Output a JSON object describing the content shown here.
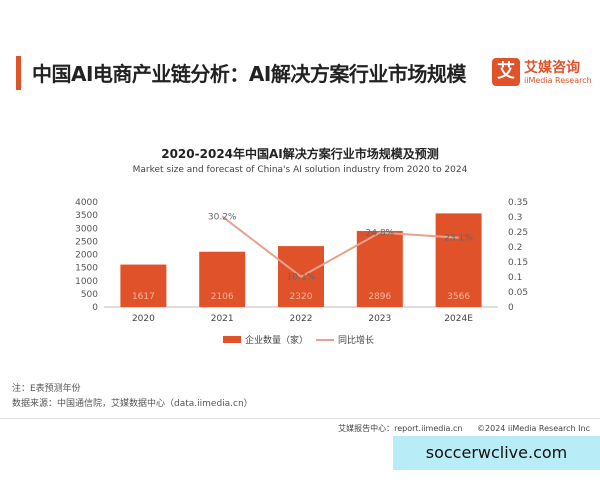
{
  "header": {
    "title": "中国AI电商产业链分析：AI解决方案行业市场规模",
    "logo_mark": "艾",
    "logo_cn": "艾媒咨询",
    "logo_en": "iiMedia Research"
  },
  "chart_data": {
    "type": "bar",
    "title": "2020-2024年中国AI解决方案行业市场规模及预测",
    "subtitle": "Market size and forecast of China's AI solution industry from 2020 to 2024",
    "categories": [
      "2020",
      "2021",
      "2022",
      "2023",
      "2024E"
    ],
    "series": [
      {
        "name": "企业数量（家）",
        "type": "bar",
        "axis": "left",
        "values": [
          1617,
          2106,
          2320,
          2896,
          3566
        ],
        "labels": [
          "1617",
          "2106",
          "2320",
          "2896",
          "3566"
        ]
      },
      {
        "name": "同比增长",
        "type": "line",
        "axis": "right",
        "values": [
          null,
          0.302,
          0.101,
          0.248,
          0.231
        ],
        "labels": [
          "",
          "30.2%",
          "10.1%",
          "24.8%",
          "23.1%"
        ]
      }
    ],
    "y_left": {
      "min": 0,
      "max": 4000,
      "step": 500,
      "ticks": [
        "0",
        "500",
        "1000",
        "1500",
        "2000",
        "2500",
        "3000",
        "3500",
        "4000"
      ]
    },
    "y_right": {
      "min": 0,
      "max": 0.35,
      "step": 0.05,
      "ticks": [
        "0",
        "0.05",
        "0.1",
        "0.15",
        "0.2",
        "0.25",
        "0.3",
        "0.35"
      ]
    },
    "grid": false,
    "legend_position": "bottom",
    "colors": {
      "bar": "#e0532a",
      "line": "#e8a190"
    }
  },
  "notes": {
    "note1": "注：E表预测年份",
    "note2": "数据来源：中国通信院，艾媒数据中心（data.iimedia.cn）"
  },
  "footer": {
    "report_site": "艾媒报告中心：report.iimedia.cn",
    "copyright": "©2024  iiMedia Research  Inc"
  },
  "watermark": "soccerwclive.com"
}
